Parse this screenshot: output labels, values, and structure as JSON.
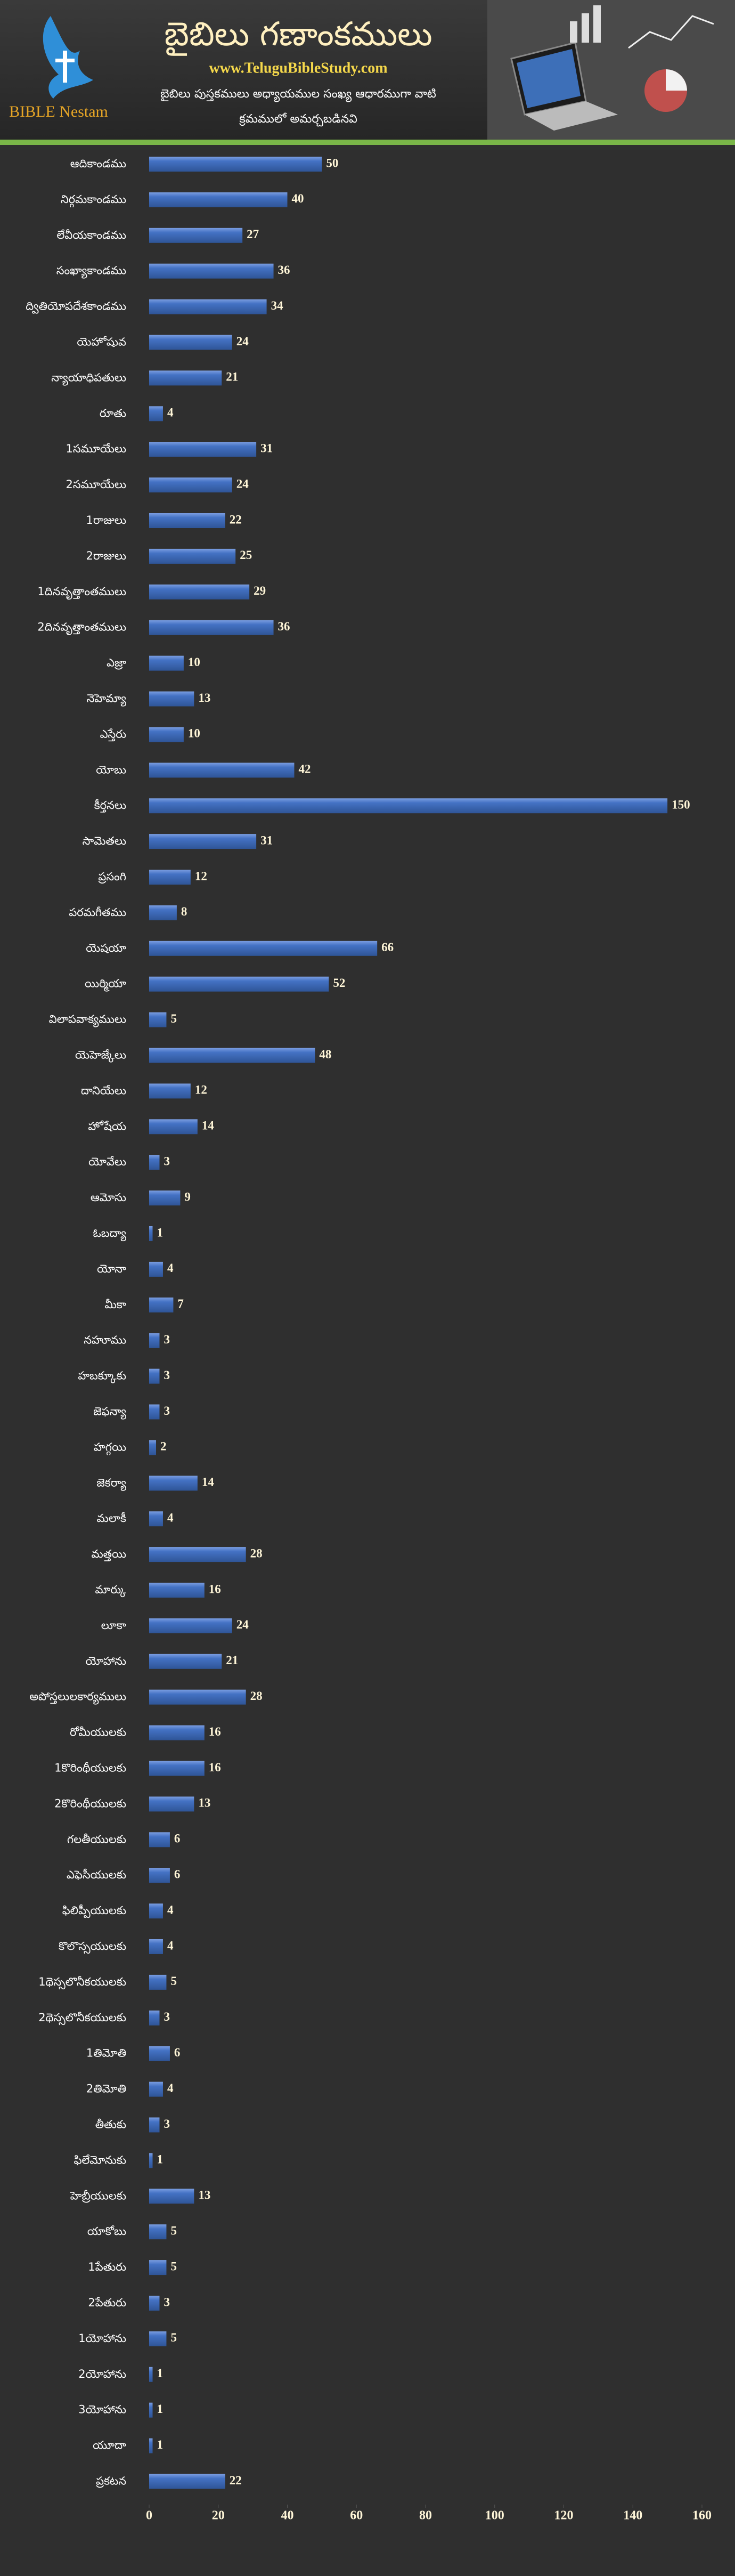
{
  "header": {
    "logo": "BIBLE Nestam",
    "title": "బైబిలు గణాంకములు",
    "website": "www.TeluguBibleStudy.com",
    "subtitle": [
      "బైబిలు పుస్తకములు అధ్యాయముల సంఖ్య ఆధారముగా వాటి",
      "క్రమములో అమర్చబడినవి"
    ]
  },
  "chart_data": {
    "type": "hbar",
    "color": "#4472c4",
    "categories": [
      "ఆదికాండము",
      "నిర్గమకాండము",
      "లేవీయకాండము",
      "సంఖ్యాకాండము",
      "ద్వితియోపదేశకాండము",
      "యెహోషువ",
      "న్యాయాధిపతులు",
      "రూతు",
      "1సమూయేలు",
      "2సమూయేలు",
      "1రాజులు",
      "2రాజులు",
      "1దినవృత్తాంతములు",
      "2దినవృత్తాంతములు",
      "ఎజ్రా",
      "నెహెమ్యా",
      "ఎస్తేరు",
      "యోబు",
      "కీర్తనలు",
      "సామెతలు",
      "ప్రసంగి",
      "పరమగీతము",
      "యెషయా",
      "యిర్మియా",
      "విలాపవాక్యములు",
      "యెహెజ్కేలు",
      "దానియేలు",
      "హోషేయ",
      "యోవేలు",
      "ఆమోసు",
      "ఓబద్యా",
      "యోనా",
      "మీకా",
      "నహూము",
      "హబక్కూకు",
      "జెఫన్యా",
      "హగ్గయి",
      "జెకర్యా",
      "మలాకీ",
      "మత్తయి",
      "మార్కు",
      "లూకా",
      "యోహాను",
      "అపోస్తలులకార్యములు",
      "రోమీయులకు",
      "1కొరింథీయులకు",
      "2కొరింథీయులకు",
      "గలతీయులకు",
      "ఎఫెసీయులకు",
      "ఫిలిప్పీయులకు",
      "కొలొస్సయులకు",
      "1థెస్సలొనీకయులకు",
      "2థెస్సలొనీకయులకు",
      "1తిమోతి",
      "2తిమోతి",
      "తీతుకు",
      "ఫిలేమోనుకు",
      "హెబ్రీయులకు",
      "యాకోబు",
      "1పేతురు",
      "2పేతురు",
      "1యోహాను",
      "2యోహాను",
      "3యోహాను",
      "యూదా",
      "ప్రకటన"
    ],
    "values": [
      50,
      40,
      27,
      36,
      34,
      24,
      21,
      4,
      31,
      24,
      22,
      25,
      29,
      36,
      10,
      13,
      10,
      42,
      150,
      31,
      12,
      8,
      66,
      52,
      5,
      48,
      12,
      14,
      3,
      9,
      1,
      4,
      7,
      3,
      3,
      3,
      2,
      14,
      4,
      28,
      16,
      24,
      21,
      28,
      16,
      16,
      13,
      6,
      6,
      4,
      4,
      5,
      3,
      6,
      4,
      3,
      1,
      13,
      5,
      5,
      3,
      5,
      1,
      1,
      1,
      22
    ],
    "xlim": [
      0,
      160
    ],
    "xticks": [
      0,
      20,
      40,
      60,
      80,
      100,
      120,
      140,
      160
    ]
  }
}
